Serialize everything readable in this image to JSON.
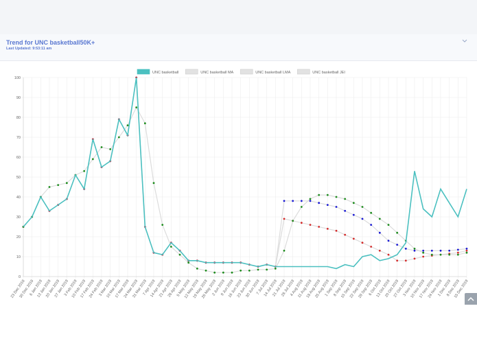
{
  "header": {
    "title": "Trend for UNC basketball50K+",
    "updated": "Last Updated: 9:53:11 am"
  },
  "chart_data": {
    "type": "line",
    "categories": [
      "23 Dec 2018",
      "30 Dec 2018",
      "6 Jan 2019",
      "13 Jan 2019",
      "20 Jan 2019",
      "27 Jan 2019",
      "3 Feb 2019",
      "10 Feb 2019",
      "17 Feb 2019",
      "24 Feb 2019",
      "3 Mar 2019",
      "10 Mar 2019",
      "17 Mar 2019",
      "24 Mar 2019",
      "31 Mar 2019",
      "7 Apr 2019",
      "14 Apr 2019",
      "21 Apr 2019",
      "28 Apr 2019",
      "5 May 2019",
      "12 May 2019",
      "19 May 2019",
      "26 May 2019",
      "2 Jun 2019",
      "9 Jun 2019",
      "16 Jun 2019",
      "23 Jun 2019",
      "30 Jun 2019",
      "7 Jul 2019",
      "14 Jul 2019",
      "21 Jul 2019",
      "28 Jul 2019",
      "4 Aug 2019",
      "11 Aug 2019",
      "18 Aug 2019",
      "25 Aug 2019",
      "1 Sep 2019",
      "8 Sep 2019",
      "15 Sep 2019",
      "22 Sep 2019",
      "29 Sep 2019",
      "6 Oct 2019",
      "13 Oct 2019",
      "20 Oct 2019",
      "27 Oct 2019",
      "3 Nov 2019",
      "10 Nov 2019",
      "17 Nov 2019",
      "24 Nov 2019",
      "1 Dec 2019",
      "8 Dec 2019",
      "15 Dec 2019"
    ],
    "series": [
      {
        "name": "UNC basketball",
        "color": "#4bc0c0",
        "values": [
          25,
          30,
          40,
          33,
          36,
          39,
          51,
          44,
          69,
          55,
          58,
          79,
          71,
          100,
          25,
          12,
          11,
          17,
          13,
          8,
          8,
          7,
          7,
          7,
          7,
          7,
          6,
          5,
          6,
          5,
          5,
          5,
          5,
          5,
          5,
          5,
          4,
          6,
          5,
          10,
          11,
          8,
          9,
          11,
          17,
          53,
          34,
          30,
          44,
          37,
          30,
          44
        ]
      },
      {
        "name": "UNC basketball MA",
        "color": "#1e8c1e",
        "values": [
          25,
          30,
          40,
          45,
          46,
          47,
          51,
          53,
          59,
          65,
          64,
          70,
          76,
          85,
          77,
          47,
          26,
          15,
          11,
          7,
          4,
          3,
          2,
          2,
          2,
          3,
          3,
          3.5,
          3.5,
          4,
          13,
          28,
          35,
          39,
          41,
          41,
          40,
          39,
          37,
          35,
          32,
          29,
          26,
          22,
          18,
          14,
          12,
          11,
          11,
          11,
          11,
          12
        ]
      },
      {
        "name": "UNC basketball LMA",
        "color": "#d42a2a",
        "values": [
          25,
          30,
          40,
          33,
          36,
          39,
          51,
          44,
          69,
          55,
          58,
          79,
          71,
          100,
          25,
          12,
          11,
          17,
          13,
          8,
          8,
          7,
          7,
          7,
          7,
          7,
          6,
          5,
          6,
          5,
          29,
          28,
          27,
          26,
          25,
          24,
          23,
          21,
          19,
          17,
          15,
          13,
          11,
          8,
          8,
          9,
          10,
          10.5,
          11,
          11.5,
          12,
          13
        ]
      },
      {
        "name": "UNC basketball JEI",
        "color": "#1a1ad4",
        "values": [
          25,
          30,
          40,
          33,
          36,
          39,
          51,
          44,
          69,
          55,
          58,
          79,
          71,
          100,
          25,
          12,
          11,
          17,
          13,
          8,
          8,
          7,
          7,
          7,
          7,
          7,
          6,
          5,
          6,
          5,
          38,
          38,
          38,
          38,
          37,
          36,
          35,
          33,
          31,
          29,
          26,
          22,
          18,
          16,
          14,
          13,
          13,
          13,
          13,
          13,
          13.5,
          14
        ]
      }
    ],
    "ylim": [
      0,
      100
    ],
    "yticks": [
      0,
      10,
      20,
      30,
      40,
      50,
      60,
      70,
      80,
      90,
      100
    ],
    "grid": true
  }
}
